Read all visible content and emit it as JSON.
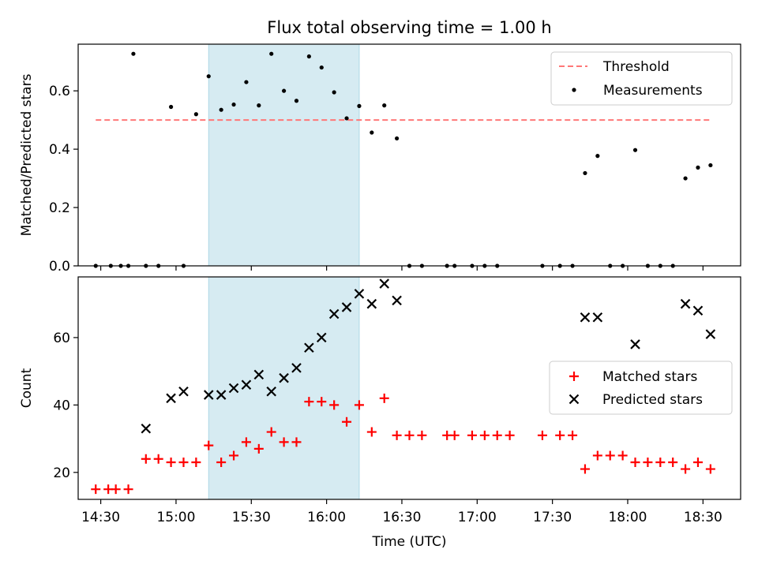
{
  "title": "Flux total observing time = 1.00 h",
  "xlabel": "Time (UTC)",
  "chart_data": [
    {
      "type": "scatter",
      "panel": "top",
      "ylabel": "Matched/Predicted stars",
      "xlim": [
        "14:21",
        "18:45"
      ],
      "ylim": [
        0,
        0.76
      ],
      "yticks": [
        0.0,
        0.2,
        0.4,
        0.6
      ],
      "grid": false,
      "legend_placement": "upper right",
      "highlight_span": [
        "15:13",
        "16:13"
      ],
      "threshold": {
        "name": "Threshold",
        "value": 0.5,
        "x_start": "14:28",
        "x_end": "18:33",
        "color": "#ff7777"
      },
      "series": [
        {
          "name": "Measurements",
          "color": "#000000",
          "x": [
            "14:28",
            "14:38",
            "14:41",
            "14:48",
            "14:53",
            "15:03",
            "15:13",
            "15:18",
            "15:23",
            "15:28",
            "15:33",
            "15:38",
            "15:43",
            "15:48",
            "15:53",
            "15:58",
            "16:03",
            "16:08",
            "16:13",
            "16:18",
            "16:23",
            "16:28",
            "14:34",
            "14:43",
            "14:58",
            "15:08",
            "16:33",
            "16:38",
            "16:48",
            "16:51",
            "16:58",
            "17:03",
            "17:08",
            "17:26",
            "17:33",
            "17:38",
            "17:43",
            "17:48",
            "17:53",
            "17:58",
            "18:03",
            "18:08",
            "18:13",
            "18:18",
            "18:23",
            "18:28",
            "18:33"
          ],
          "y": [
            0,
            0,
            0,
            0,
            0,
            0,
            0.65,
            0.535,
            0.553,
            0.63,
            0.55,
            0.727,
            0.6,
            0.566,
            0.718,
            0.68,
            0.595,
            0.506,
            0.548,
            0.457,
            0.55,
            0.437,
            0,
            0.727,
            0.545,
            0.52,
            0,
            0,
            0,
            0,
            0,
            0,
            0,
            0,
            0,
            0,
            0.318,
            0.377,
            0,
            0,
            0.397,
            0,
            0,
            0,
            0.3,
            0.337,
            0.345
          ]
        }
      ]
    },
    {
      "type": "scatter",
      "panel": "bottom",
      "ylabel": "Count",
      "xlim": [
        "14:21",
        "18:45"
      ],
      "ylim": [
        12,
        78
      ],
      "yticks": [
        20,
        40,
        60
      ],
      "xticks": [
        "14:30",
        "15:00",
        "15:30",
        "16:00",
        "16:30",
        "17:00",
        "17:30",
        "18:00",
        "18:30"
      ],
      "grid": false,
      "legend_placement": "center right",
      "highlight_span": [
        "15:13",
        "16:13"
      ],
      "series": [
        {
          "name": "Matched stars",
          "color": "#ff0000",
          "x": [
            "14:28",
            "14:33",
            "14:36",
            "14:41",
            "14:48",
            "14:53",
            "14:58",
            "15:03",
            "15:08",
            "15:13",
            "15:18",
            "15:23",
            "15:28",
            "15:33",
            "15:38",
            "15:43",
            "15:48",
            "15:53",
            "15:58",
            "16:03",
            "16:08",
            "16:13",
            "16:18",
            "16:23",
            "16:28",
            "16:33",
            "16:38",
            "16:48",
            "16:51",
            "16:58",
            "17:03",
            "17:08",
            "17:13",
            "17:26",
            "17:33",
            "17:38",
            "17:43",
            "17:48",
            "17:53",
            "17:58",
            "18:03",
            "18:08",
            "18:13",
            "18:18",
            "18:23",
            "18:28",
            "18:33"
          ],
          "y": [
            15,
            15,
            15,
            15,
            24,
            24,
            23,
            23,
            23,
            28,
            23,
            25,
            29,
            27,
            32,
            29,
            29,
            41,
            41,
            40,
            35,
            40,
            32,
            42,
            31,
            31,
            31,
            31,
            31,
            31,
            31,
            31,
            31,
            31,
            31,
            31,
            21,
            25,
            25,
            25,
            23,
            23,
            23,
            23,
            21,
            23,
            21
          ]
        },
        {
          "name": "Predicted stars",
          "color": "#000000",
          "x": [
            "14:48",
            "14:58",
            "15:03",
            "15:13",
            "15:18",
            "15:23",
            "15:28",
            "15:33",
            "15:38",
            "15:43",
            "15:48",
            "15:53",
            "15:58",
            "16:03",
            "16:08",
            "16:13",
            "16:18",
            "16:23",
            "16:28",
            "17:43",
            "17:48",
            "18:03",
            "18:23",
            "18:28",
            "18:33"
          ],
          "y": [
            33,
            42,
            44,
            43,
            43,
            45,
            46,
            49,
            44,
            48,
            51,
            57,
            60,
            67,
            69,
            73,
            70,
            76,
            71,
            66,
            66,
            58,
            70,
            68,
            61
          ]
        }
      ]
    }
  ]
}
